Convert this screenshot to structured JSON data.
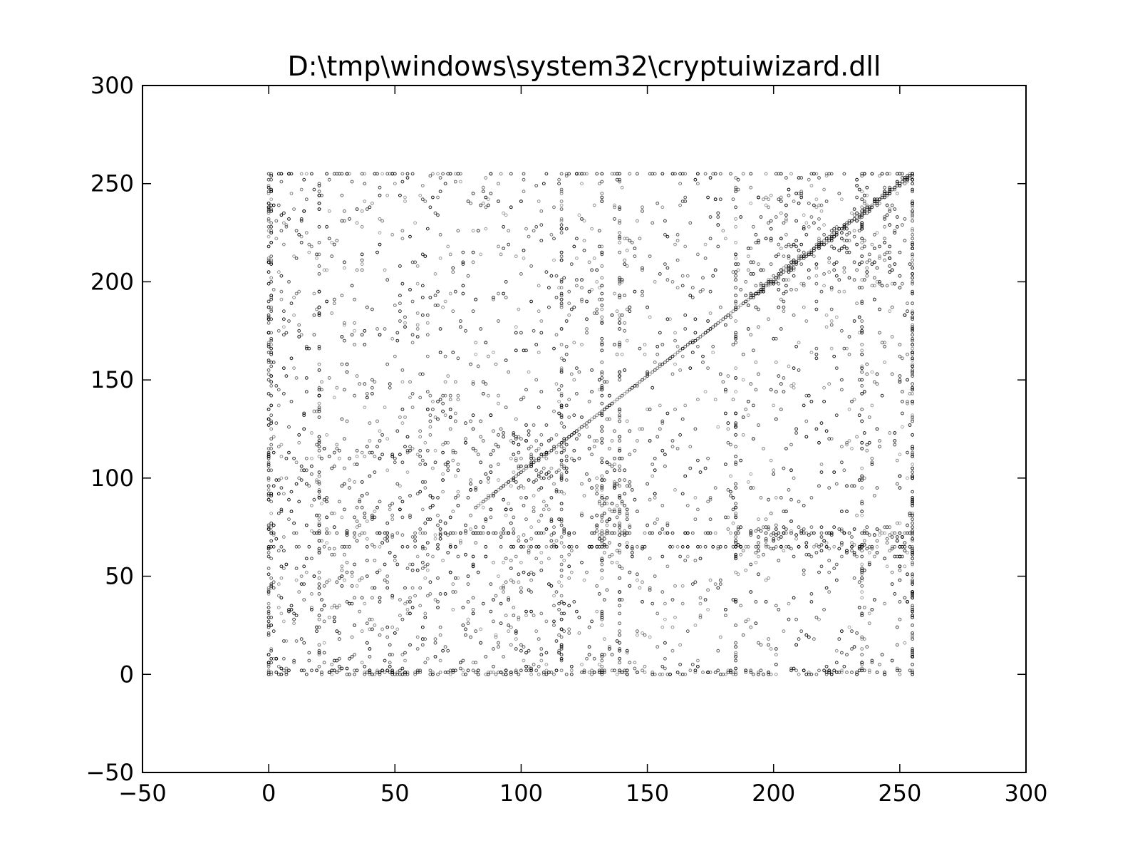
{
  "chart_data": {
    "type": "scatter",
    "title": "D:\\tmp\\windows\\system32\\cryptuiwizard.dll",
    "xlabel": "",
    "ylabel": "",
    "xlim": [
      -50,
      300
    ],
    "ylim": [
      -50,
      300
    ],
    "xticks": [
      -50,
      0,
      50,
      100,
      150,
      200,
      250,
      300
    ],
    "yticks": [
      -50,
      0,
      50,
      100,
      150,
      200,
      250,
      300
    ],
    "x_tick_labels": [
      "−50",
      "0",
      "50",
      "100",
      "150",
      "200",
      "250",
      "300"
    ],
    "y_tick_labels": [
      "−50",
      "0",
      "50",
      "100",
      "150",
      "200",
      "250",
      "300"
    ],
    "grid": false,
    "legend": "none",
    "marker_color": "#000000",
    "marker": "hollow-circle",
    "domain": {
      "x": [
        0,
        255
      ],
      "y": [
        0,
        255
      ]
    },
    "description_structures": {
      "diagonal": {
        "from": [
          82,
          85
        ],
        "to": [
          255,
          255
        ]
      },
      "dense_rows_y": [
        0,
        65,
        72,
        255
      ],
      "dense_columns_x": [
        0,
        20,
        116,
        132,
        139,
        185,
        235,
        255
      ],
      "clusters": [
        {
          "x": [
            97,
            118
          ],
          "y": [
            98,
            122
          ]
        },
        {
          "x": [
            64,
            78
          ],
          "y": [
            128,
            142
          ]
        },
        {
          "x": [
            130,
            142
          ],
          "y": [
            60,
            110
          ]
        },
        {
          "x": [
            190,
            250
          ],
          "y": [
            195,
            245
          ]
        },
        {
          "x": [
            186,
            255
          ],
          "y": [
            60,
            75
          ]
        }
      ]
    },
    "sample_points": [
      [
        0,
        0
      ],
      [
        0,
        255
      ],
      [
        255,
        0
      ],
      [
        255,
        255
      ],
      [
        20,
        72
      ],
      [
        116,
        10
      ],
      [
        139,
        150
      ],
      [
        110,
        112
      ],
      [
        72,
        135
      ],
      [
        200,
        200
      ],
      [
        230,
        225
      ],
      [
        185,
        60
      ],
      [
        235,
        30
      ]
    ]
  }
}
